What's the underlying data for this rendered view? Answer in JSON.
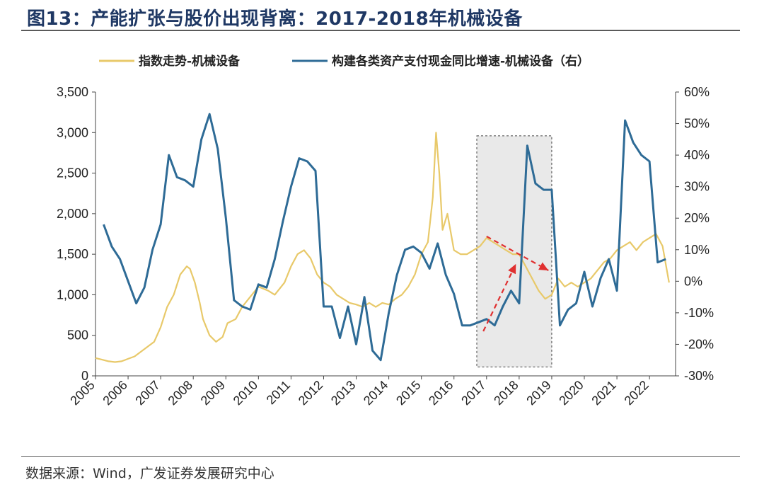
{
  "title": "图13：产能扩张与股价出现背离：2017-2018年机械设备",
  "source": "数据来源：Wind，广发证券发展研究中心",
  "chart_data": {
    "type": "line",
    "legend": [
      {
        "name": "指数走势-机械设备",
        "color": "#e8c96a",
        "axis": "left"
      },
      {
        "name": "构建各类资产支付现金同比增速-机械设备（右）",
        "color": "#2e6b96",
        "axis": "right"
      }
    ],
    "legend_position": "top",
    "left_axis": {
      "min": 0,
      "max": 3500,
      "ticks": [
        0,
        500,
        1000,
        1500,
        2000,
        2500,
        3000,
        3500
      ],
      "tick_labels": [
        "0",
        "500",
        "1,000",
        "1,500",
        "2,000",
        "2,500",
        "3,000",
        "3,500"
      ]
    },
    "right_axis": {
      "min": -30,
      "max": 60,
      "ticks": [
        -30,
        -20,
        -10,
        0,
        10,
        20,
        30,
        40,
        50,
        60
      ],
      "tick_labels": [
        "-30%",
        "-20%",
        "-10%",
        "0%",
        "10%",
        "20%",
        "30%",
        "40%",
        "50%",
        "60%"
      ]
    },
    "x_axis": {
      "min": 2005,
      "max": 2022.8,
      "tick_labels": [
        "2005",
        "2006",
        "2007",
        "2008",
        "2009",
        "2010",
        "2011",
        "2012",
        "2013",
        "2014",
        "2015",
        "2016",
        "2017",
        "2018",
        "2019",
        "2020",
        "2021",
        "2022"
      ]
    },
    "highlight_region": {
      "x_start": 2016.7,
      "x_end": 2019.0,
      "y_start": 110,
      "y_end": 2960
    },
    "arrows": [
      {
        "from": [
          2016.9,
          550
        ],
        "to": [
          2017.9,
          1380
        ],
        "color": "#e03030",
        "style": "dashed"
      },
      {
        "from": [
          2017.0,
          1720
        ],
        "to": [
          2018.9,
          1300
        ],
        "color": "#e03030",
        "style": "dashed"
      }
    ],
    "series": [
      {
        "name": "指数走势-机械设备",
        "axis": "left",
        "color": "#e8c96a",
        "x": [
          2005,
          2005.2,
          2005.4,
          2005.6,
          2005.8,
          2006,
          2006.2,
          2006.4,
          2006.6,
          2006.8,
          2007,
          2007.2,
          2007.4,
          2007.6,
          2007.8,
          2007.9,
          2008.05,
          2008.2,
          2008.3,
          2008.5,
          2008.7,
          2008.9,
          2009.05,
          2009.3,
          2009.5,
          2009.8,
          2010,
          2010.3,
          2010.5,
          2010.8,
          2011,
          2011.2,
          2011.4,
          2011.6,
          2011.8,
          2012,
          2012.2,
          2012.4,
          2012.6,
          2012.8,
          2013,
          2013.2,
          2013.4,
          2013.6,
          2013.8,
          2014,
          2014.2,
          2014.4,
          2014.6,
          2014.8,
          2015,
          2015.2,
          2015.35,
          2015.45,
          2015.55,
          2015.65,
          2015.8,
          2016,
          2016.2,
          2016.4,
          2016.6,
          2016.8,
          2017,
          2017.2,
          2017.4,
          2017.6,
          2017.8,
          2018,
          2018.2,
          2018.4,
          2018.6,
          2018.8,
          2019,
          2019.2,
          2019.4,
          2019.6,
          2019.8,
          2020,
          2020.2,
          2020.4,
          2020.6,
          2020.8,
          2021,
          2021.2,
          2021.4,
          2021.6,
          2021.8,
          2022,
          2022.2,
          2022.4,
          2022.6
        ],
        "y": [
          220,
          200,
          180,
          170,
          180,
          210,
          240,
          300,
          360,
          420,
          600,
          850,
          1000,
          1250,
          1350,
          1320,
          1150,
          900,
          700,
          500,
          420,
          480,
          650,
          700,
          850,
          1000,
          1100,
          1050,
          1000,
          1150,
          1350,
          1500,
          1550,
          1450,
          1250,
          1150,
          1100,
          1000,
          950,
          900,
          880,
          850,
          900,
          850,
          900,
          880,
          950,
          1000,
          1100,
          1250,
          1500,
          1650,
          2200,
          3000,
          2500,
          1800,
          2000,
          1550,
          1500,
          1500,
          1550,
          1600,
          1700,
          1650,
          1600,
          1550,
          1500,
          1500,
          1350,
          1200,
          1050,
          950,
          1000,
          1200,
          1100,
          1150,
          1100,
          1150,
          1200,
          1300,
          1400,
          1450,
          1550,
          1600,
          1650,
          1550,
          1650,
          1700,
          1750,
          1600,
          1150
        ]
      },
      {
        "name": "构建各类资产支付现金同比增速-机械设备（右）",
        "axis": "right",
        "color": "#2e6b96",
        "x": [
          2005.25,
          2005.5,
          2005.75,
          2006,
          2006.25,
          2006.5,
          2006.75,
          2007,
          2007.25,
          2007.5,
          2007.75,
          2008,
          2008.25,
          2008.5,
          2008.75,
          2009,
          2009.25,
          2009.5,
          2009.75,
          2010,
          2010.25,
          2010.5,
          2010.75,
          2011,
          2011.25,
          2011.5,
          2011.75,
          2012,
          2012.25,
          2012.5,
          2012.75,
          2013,
          2013.25,
          2013.5,
          2013.75,
          2014,
          2014.25,
          2014.5,
          2014.75,
          2015,
          2015.25,
          2015.5,
          2015.75,
          2016,
          2016.25,
          2016.5,
          2016.75,
          2017,
          2017.25,
          2017.5,
          2017.75,
          2018,
          2018.25,
          2018.5,
          2018.75,
          2019,
          2019.25,
          2019.5,
          2019.75,
          2020,
          2020.25,
          2020.5,
          2020.75,
          2021,
          2021.25,
          2021.5,
          2021.75,
          2022,
          2022.25,
          2022.5
        ],
        "y": [
          18,
          11,
          7,
          0,
          -7,
          -2,
          10,
          18,
          40,
          33,
          32,
          30,
          45,
          53,
          42,
          20,
          -6,
          -8,
          -9,
          -1,
          -2,
          7,
          19,
          30,
          39,
          38,
          35,
          -8,
          -8,
          -18,
          -8,
          -20,
          -5,
          -22,
          -25,
          -10,
          2,
          10,
          11,
          9,
          4,
          12,
          2,
          -4,
          -14,
          -14,
          -13,
          -12,
          -14,
          -8,
          -3,
          -7,
          43,
          31,
          29,
          29,
          -14,
          -9,
          -7,
          3,
          -8,
          1,
          7,
          -3,
          51,
          44,
          40,
          38,
          6,
          7
        ]
      }
    ]
  }
}
